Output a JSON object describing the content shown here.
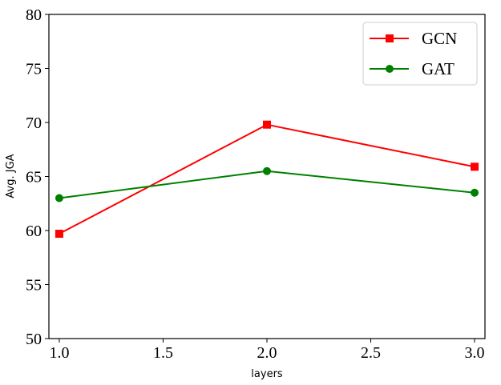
{
  "chart_data": {
    "type": "line",
    "xlabel": "layers",
    "ylabel": "Avg. JGA",
    "xlim": [
      0.95,
      3.05
    ],
    "ylim": [
      50,
      80
    ],
    "xticks": [
      1.0,
      1.5,
      2.0,
      2.5,
      3.0
    ],
    "xtick_labels": [
      "1.0",
      "1.5",
      "2.0",
      "2.5",
      "3.0"
    ],
    "yticks": [
      50,
      55,
      60,
      65,
      70,
      75,
      80
    ],
    "ytick_labels": [
      "50",
      "55",
      "60",
      "65",
      "70",
      "75",
      "80"
    ],
    "grid": false,
    "legend_position": "top-right",
    "series": [
      {
        "name": "GCN",
        "color": "#ff0000",
        "marker": "square",
        "x": [
          1.0,
          2.0,
          3.0
        ],
        "y": [
          59.7,
          69.8,
          65.9
        ]
      },
      {
        "name": "GAT",
        "color": "#008000",
        "marker": "circle",
        "x": [
          1.0,
          2.0,
          3.0
        ],
        "y": [
          63.0,
          65.5,
          63.5
        ]
      }
    ]
  }
}
